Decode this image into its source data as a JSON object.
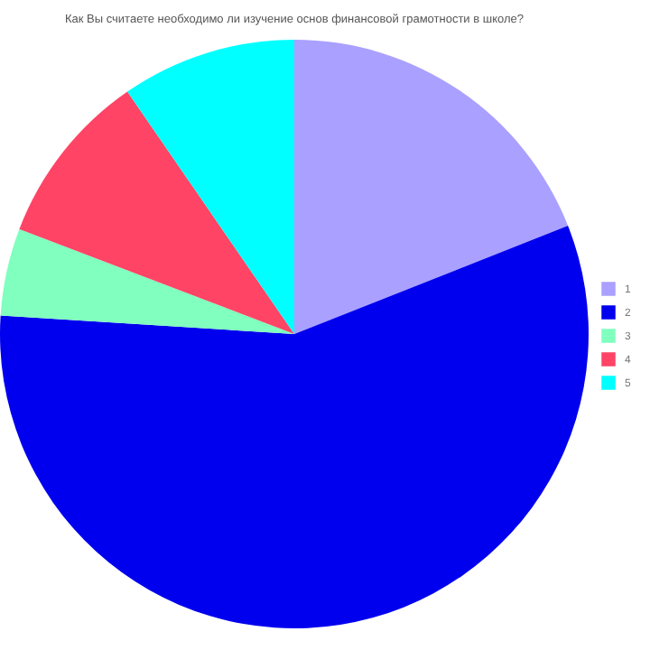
{
  "chart_data": {
    "type": "pie",
    "title": "Как Вы считаете необходимо ли изучение основ финансовой грамотности в школе?",
    "categories": [
      "1",
      "2",
      "3",
      "4",
      "5"
    ],
    "values": [
      19,
      57,
      4.8,
      9.6,
      9.6
    ],
    "colors": [
      "#aaa0ff",
      "#0000ee",
      "#80ffbf",
      "#ff4466",
      "#00ffff"
    ],
    "legend": "right"
  }
}
